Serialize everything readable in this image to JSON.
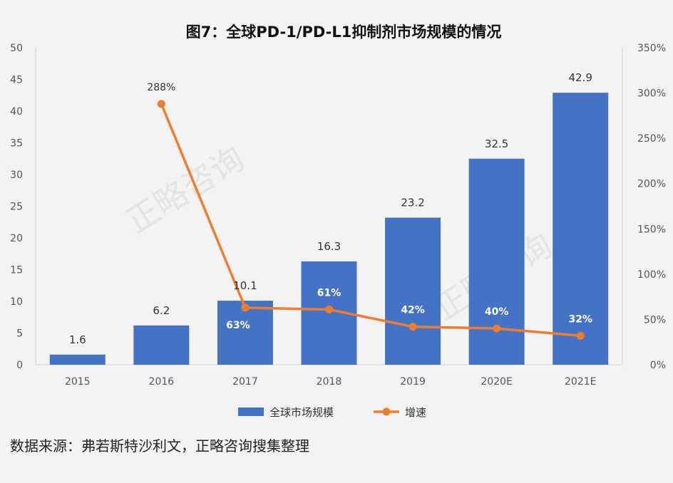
{
  "chart_data": {
    "type": "bar",
    "title": "图7：全球PD-1/PD-L1抑制剂市场规模的情况",
    "categories": [
      "2015",
      "2016",
      "2017",
      "2018",
      "2019",
      "2020E",
      "2021E"
    ],
    "series": [
      {
        "name": "全球市场规模",
        "type": "bar",
        "axis": "left",
        "values": [
          1.6,
          6.2,
          10.1,
          16.3,
          23.2,
          32.5,
          42.9
        ],
        "labels": [
          "1.6",
          "6.2",
          "10.1",
          "16.3",
          "23.2",
          "32.5",
          "42.9"
        ],
        "color": "#4472c4"
      },
      {
        "name": "增速",
        "type": "line",
        "axis": "right",
        "values": [
          null,
          288,
          63,
          61,
          42,
          40,
          32
        ],
        "labels": [
          "",
          "288%",
          "63%",
          "61%",
          "42%",
          "40%",
          "32%"
        ],
        "color": "#ed7d31"
      }
    ],
    "y_left": {
      "ylim": [
        0,
        50
      ],
      "ticks": [
        "0",
        "5",
        "10",
        "15",
        "20",
        "25",
        "30",
        "35",
        "40",
        "45",
        "50"
      ]
    },
    "y_right": {
      "ylim": [
        0,
        350
      ],
      "ticks": [
        "0%",
        "50%",
        "100%",
        "150%",
        "200%",
        "250%",
        "300%",
        "350%"
      ]
    },
    "legend_position": "bottom",
    "grid": false
  },
  "watermark": "正略咨询",
  "source_note": "数据来源：弗若斯特沙利文，正略咨询搜集整理"
}
